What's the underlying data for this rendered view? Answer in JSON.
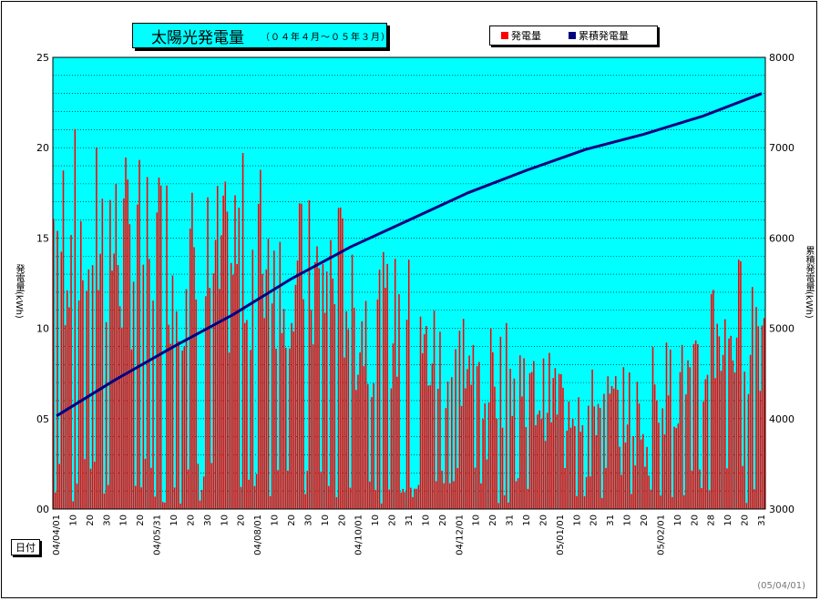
{
  "chart_data": {
    "type": "bar+line",
    "title": "太陽光発電量",
    "subtitle": "（０４年４月～０５年３月）",
    "xlabel": "日付",
    "ylabel_left": "発電量(kWh)",
    "ylabel_right": "累積発電量(kWh)",
    "footnote": "(05/04/01)",
    "left_axis": {
      "min": 0,
      "max": 25,
      "ticks": [
        "00",
        "05",
        "10",
        "15",
        "20",
        "25"
      ]
    },
    "right_axis": {
      "min": 3000,
      "max": 8000,
      "ticks": [
        "3000",
        "4000",
        "5000",
        "6000",
        "7000",
        "8000"
      ]
    },
    "x_tick_labels": [
      "04/04/01",
      "10",
      "20",
      "30",
      "10",
      "20",
      "04/05/31",
      "10",
      "20",
      "30",
      "10",
      "20",
      "04/08/01",
      "10",
      "20",
      "30",
      "10",
      "20",
      "04/10/01",
      "10",
      "20",
      "31",
      "10",
      "20",
      "04/12/01",
      "10",
      "20",
      "31",
      "10",
      "20",
      "05/01/01",
      "10",
      "20",
      "31",
      "10",
      "20",
      "05/02/01",
      "10",
      "20",
      "28",
      "10",
      "20",
      "31"
    ],
    "legend": [
      {
        "label": "発電量",
        "color": "#ff0000"
      },
      {
        "label": "累積発電量",
        "color": "#000080"
      }
    ],
    "days": 365,
    "daily_output_monthly_avg_kwh": [
      13.5,
      12.5,
      11.5,
      12.5,
      11.0,
      9.0,
      7.5,
      6.5,
      5.5,
      5.0,
      6.0,
      9.0
    ],
    "cumulative_kwh_monthly": [
      {
        "date": "04/04/01",
        "value": 4030
      },
      {
        "date": "04/05/01",
        "value": 4430
      },
      {
        "date": "04/06/01",
        "value": 4800
      },
      {
        "date": "04/07/01",
        "value": 5150
      },
      {
        "date": "04/08/01",
        "value": 5550
      },
      {
        "date": "04/09/01",
        "value": 5900
      },
      {
        "date": "04/10/01",
        "value": 6200
      },
      {
        "date": "04/11/01",
        "value": 6500
      },
      {
        "date": "04/12/01",
        "value": 6750
      },
      {
        "date": "05/01/01",
        "value": 6980
      },
      {
        "date": "05/02/01",
        "value": 7150
      },
      {
        "date": "05/03/01",
        "value": 7350
      },
      {
        "date": "05/03/31",
        "value": 7600
      }
    ],
    "colors": {
      "plot_bg": "#00ffff",
      "bar": "#ff0000",
      "line": "#000080",
      "grid": "#000000"
    }
  }
}
